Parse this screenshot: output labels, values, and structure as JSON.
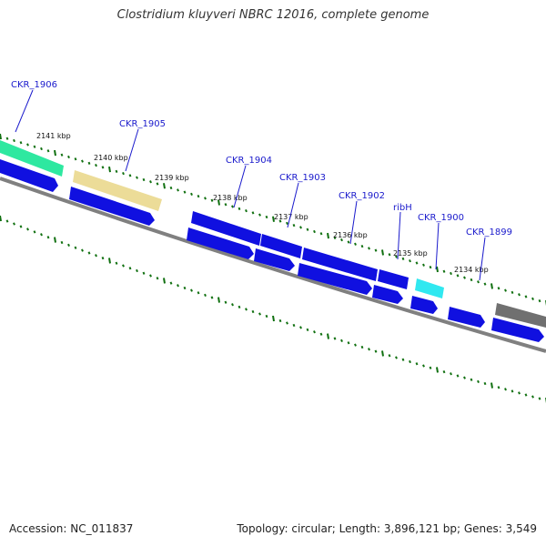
{
  "title": "Clostridium kluyveri NBRC 12016, complete genome",
  "footer": {
    "accession": "Accession: NC_011837",
    "stats": "Topology: circular; Length: 3,896,121 bp; Genes: 3,549"
  },
  "colors": {
    "cds": "#1010e0",
    "backbone": "#808080",
    "tick": "#107010",
    "label": "#1a1acc",
    "gene_green": "#2ee8a0",
    "gene_tan": "#ecdc98",
    "gene_cyan": "#30e8f0",
    "gene_gray": "#707070"
  },
  "ticks": [
    "2141 kbp",
    "2140 kbp",
    "2139 kbp",
    "2138 kbp",
    "2137 kbp",
    "2136 kbp",
    "2135 kbp",
    "2134 kbp"
  ],
  "genes": [
    "CKR_1906",
    "CKR_1905",
    "CKR_1904",
    "CKR_1903",
    "CKR_1902",
    "ribH",
    "CKR_1900",
    "CKR_1899"
  ]
}
